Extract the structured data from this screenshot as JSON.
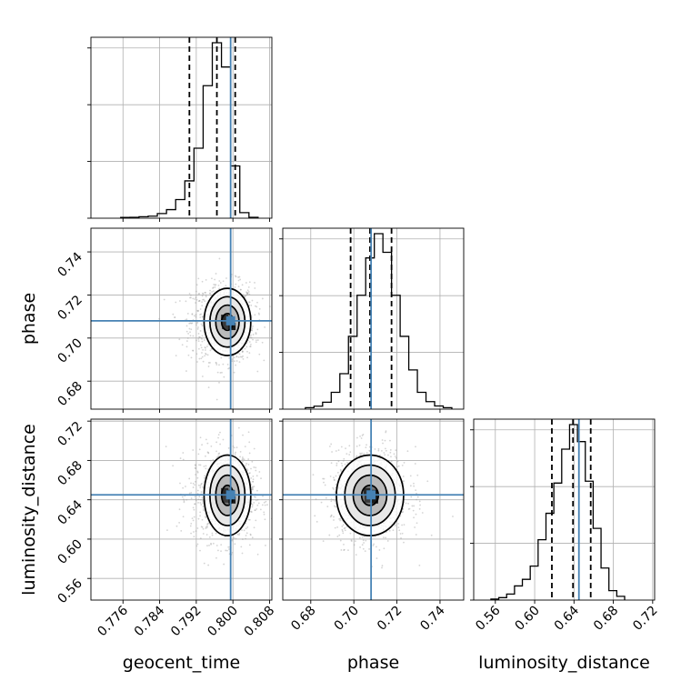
{
  "chart_data": {
    "type": "corner",
    "parameters": [
      "geocent_time",
      "phase",
      "luminosity_distance"
    ],
    "axis_labels": {
      "bottom": [
        "geocent_time",
        "phase",
        "luminosity_distance"
      ],
      "left": [
        "",
        "phase",
        "luminosity_distance"
      ]
    },
    "ranges": {
      "geocent_time": [
        0.769,
        0.8085
      ],
      "phase": [
        0.667,
        0.751
      ],
      "luminosity_distance": [
        0.538,
        0.722
      ]
    },
    "ticks": {
      "geocent_time": [
        0.776,
        0.784,
        0.792,
        0.8,
        0.808
      ],
      "phase": [
        0.68,
        0.7,
        0.72,
        0.74
      ],
      "luminosity_distance": [
        0.56,
        0.6,
        0.64,
        0.68,
        0.72
      ]
    },
    "tick_labels": {
      "geocent_time": [
        "0.776",
        "0.784",
        "0.792",
        "0.800",
        "0.808"
      ],
      "phase": [
        "0.68",
        "0.70",
        "0.72",
        "0.74"
      ],
      "luminosity_distance": [
        "0.56",
        "0.60",
        "0.64",
        "0.68",
        "0.72"
      ]
    },
    "truths": {
      "geocent_time": 0.7995,
      "phase": 0.708,
      "luminosity_distance": 0.645
    },
    "quantiles": {
      "geocent_time": [
        0.7905,
        0.7965,
        0.8005
      ],
      "phase": [
        0.6985,
        0.7075,
        0.7175
      ],
      "luminosity_distance": [
        0.6175,
        0.639,
        0.657
      ]
    },
    "histograms": {
      "geocent_time": {
        "edges": [
          0.7755,
          0.7775,
          0.7795,
          0.7815,
          0.7835,
          0.7855,
          0.7875,
          0.7895,
          0.7915,
          0.7935,
          0.7955,
          0.7975,
          0.7995,
          0.8015,
          0.8035,
          0.8055
        ],
        "counts": [
          0.4,
          0.5,
          0.8,
          1.1,
          2.5,
          4.6,
          10,
          20,
          37.5,
          71,
          94,
          81,
          28,
          3,
          0.5
        ]
      },
      "phase": {
        "edges": [
          0.6775,
          0.6815,
          0.6855,
          0.6895,
          0.6935,
          0.6975,
          0.7015,
          0.7055,
          0.7095,
          0.7135,
          0.7175,
          0.7215,
          0.7255,
          0.7295,
          0.7335,
          0.7375,
          0.7415,
          0.7455
        ],
        "counts": [
          0.8,
          1.6,
          3.7,
          9,
          19,
          39,
          61,
          81,
          94,
          84,
          61,
          39,
          21,
          9,
          4,
          1.7,
          0.8
        ]
      },
      "luminosity_distance": {
        "edges": [
          0.5555,
          0.5635,
          0.5715,
          0.5795,
          0.5875,
          0.5955,
          0.6035,
          0.6115,
          0.6195,
          0.6275,
          0.6355,
          0.6435,
          0.6515,
          0.6595,
          0.6675,
          0.6755,
          0.6835,
          0.6915
        ],
        "counts": [
          0.5,
          1.3,
          3.2,
          7.5,
          11,
          18,
          32,
          46,
          62,
          80,
          93,
          84,
          63,
          38,
          17,
          5,
          2
        ]
      }
    },
    "posterior_2d": {
      "phase_vs_geocent_time": {
        "center": [
          0.7988,
          0.7075
        ],
        "sigma": [
          0.00255,
          0.0078
        ],
        "rho": 0.05
      },
      "luminosity_distance_vs_geocent_time": {
        "center": [
          0.7988,
          0.6445
        ],
        "sigma": [
          0.00255,
          0.0205
        ],
        "rho": 0.05
      },
      "luminosity_distance_vs_phase": {
        "center": [
          0.7075,
          0.6445
        ],
        "sigma": [
          0.0078,
          0.0205
        ],
        "rho": -0.05
      }
    },
    "contour_levels_sigma": [
      0.5,
      1.0,
      1.5,
      2.0
    ],
    "colors": {
      "truth": "#4682b4",
      "lines": "#000000",
      "scatter": "#a0a0a0",
      "grid": "#b0b0b0"
    },
    "grid": true
  }
}
